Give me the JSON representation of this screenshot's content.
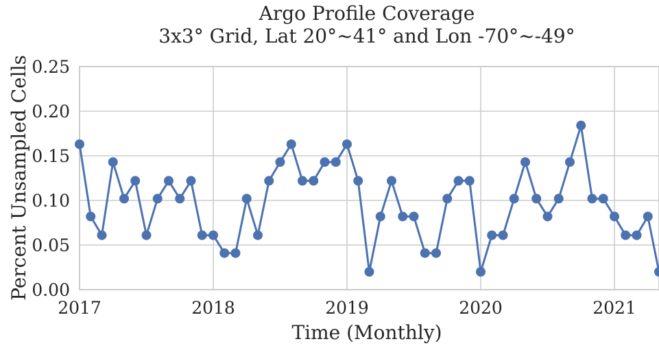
{
  "chart_data": {
    "type": "line",
    "title": "Argo Profile Coverage",
    "subtitle": "3x3° Grid, Lat 20°~41° and Lon -70°~-49°",
    "xlabel": "Time (Monthly)",
    "ylabel": "Percent Unsampled Cells",
    "xlim": [
      "2017-01",
      "2021-05"
    ],
    "ylim": [
      0,
      0.25
    ],
    "xticks": [
      "2017",
      "2018",
      "2019",
      "2020",
      "2021"
    ],
    "yticks": [
      "0.00",
      "0.05",
      "0.10",
      "0.15",
      "0.20",
      "0.25"
    ],
    "grid": true,
    "series": [
      {
        "color": "#4c72b0",
        "x": [
          "2017-01",
          "2017-02",
          "2017-03",
          "2017-04",
          "2017-05",
          "2017-06",
          "2017-07",
          "2017-08",
          "2017-09",
          "2017-10",
          "2017-11",
          "2017-12",
          "2018-01",
          "2018-02",
          "2018-03",
          "2018-04",
          "2018-05",
          "2018-06",
          "2018-07",
          "2018-08",
          "2018-09",
          "2018-10",
          "2018-11",
          "2018-12",
          "2019-01",
          "2019-02",
          "2019-03",
          "2019-04",
          "2019-05",
          "2019-06",
          "2019-07",
          "2019-08",
          "2019-09",
          "2019-10",
          "2019-11",
          "2019-12",
          "2020-01",
          "2020-02",
          "2020-03",
          "2020-04",
          "2020-05",
          "2020-06",
          "2020-07",
          "2020-08",
          "2020-09",
          "2020-10",
          "2020-11",
          "2020-12",
          "2021-01",
          "2021-02",
          "2021-03",
          "2021-04",
          "2021-05"
        ],
        "values": [
          0.163,
          0.082,
          0.061,
          0.143,
          0.102,
          0.122,
          0.061,
          0.102,
          0.122,
          0.102,
          0.122,
          0.061,
          0.061,
          0.041,
          0.041,
          0.102,
          0.061,
          0.122,
          0.143,
          0.163,
          0.122,
          0.122,
          0.143,
          0.143,
          0.163,
          0.122,
          0.02,
          0.082,
          0.122,
          0.082,
          0.082,
          0.041,
          0.041,
          0.102,
          0.122,
          0.122,
          0.02,
          0.061,
          0.061,
          0.102,
          0.143,
          0.102,
          0.082,
          0.102,
          0.143,
          0.184,
          0.102,
          0.102,
          0.082,
          0.061,
          0.061,
          0.082,
          0.02
        ]
      }
    ]
  }
}
